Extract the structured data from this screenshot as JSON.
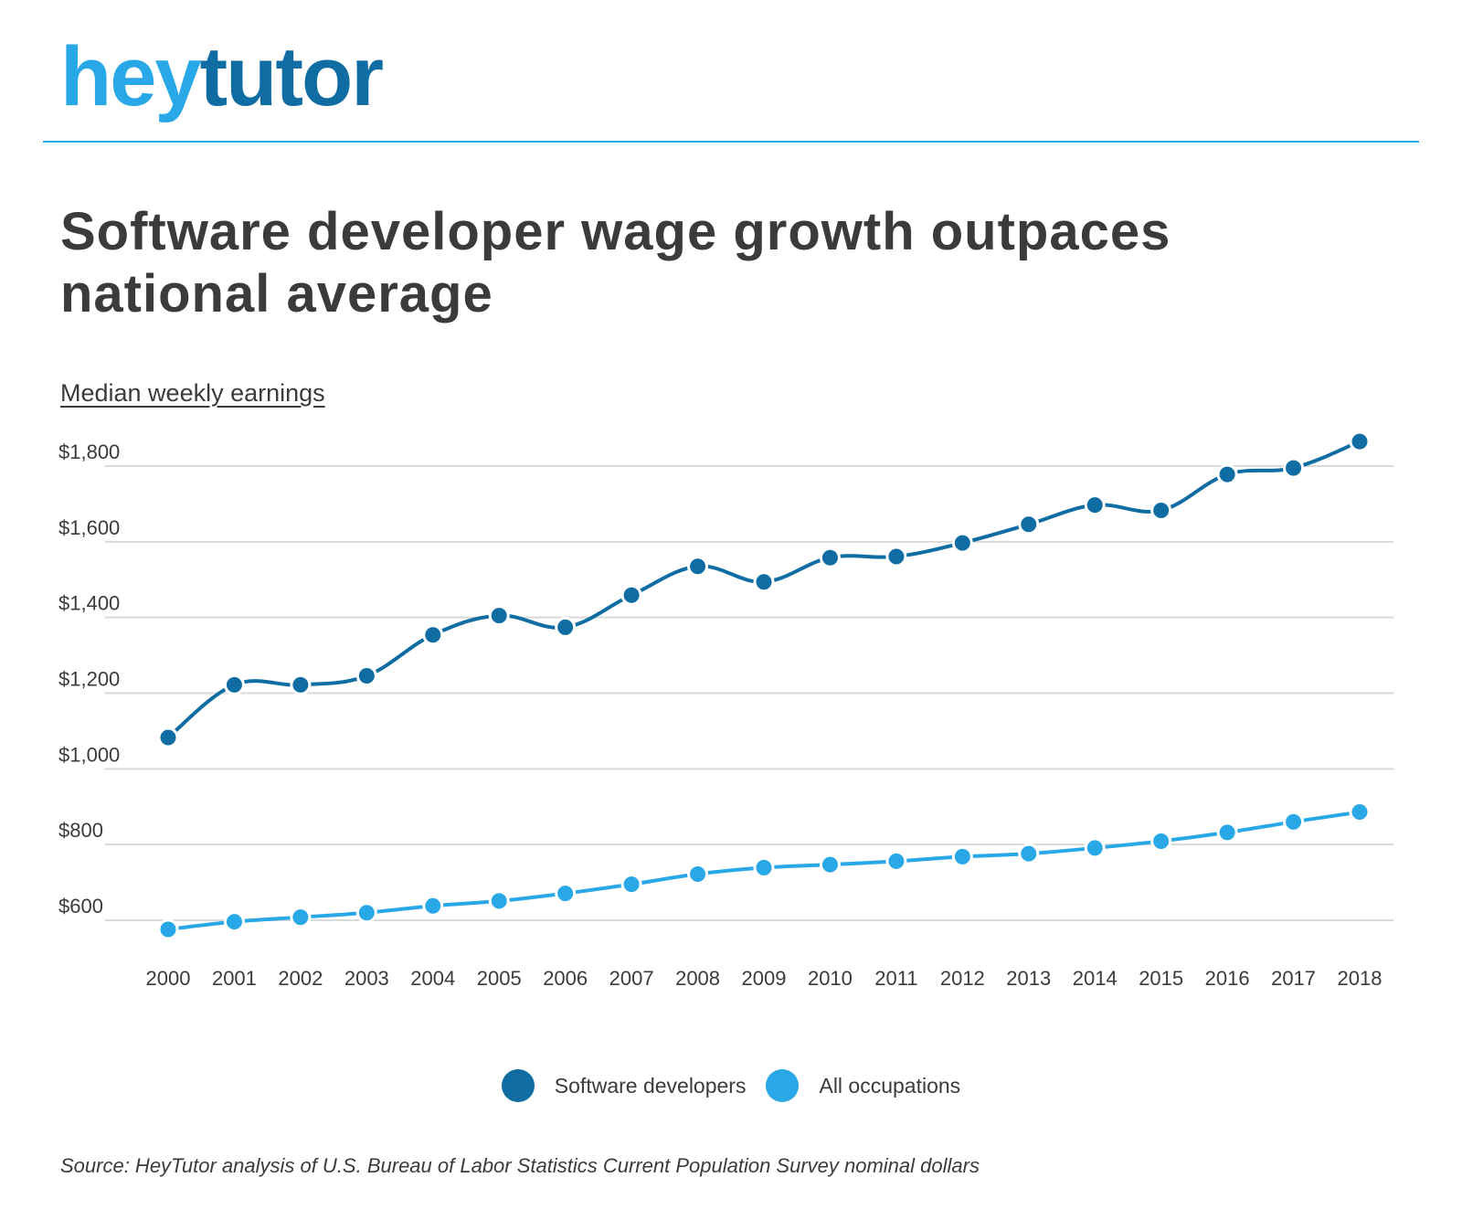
{
  "logo": {
    "part1": "hey",
    "part2": "tutor"
  },
  "title": "Software developer wage growth outpaces national average",
  "subtitle": "Median weekly earnings",
  "source": "Source: HeyTutor analysis of U.S. Bureau of Labor Statistics Current Population Survey nominal dollars",
  "colors": {
    "brand_light": "#29a8e8",
    "brand_dark": "#0f6da3",
    "grid": "#d9d9d9",
    "text": "#3b3b3d"
  },
  "chart_data": {
    "type": "line",
    "x": [
      "2000",
      "2001",
      "2002",
      "2003",
      "2004",
      "2005",
      "2006",
      "2007",
      "2008",
      "2009",
      "2010",
      "2011",
      "2012",
      "2013",
      "2014",
      "2015",
      "2016",
      "2017",
      "2018"
    ],
    "yticks": [
      600,
      800,
      1000,
      1200,
      1400,
      1600,
      1800
    ],
    "ytick_labels": [
      "$600",
      "$800",
      "$1,000",
      "$1,200",
      "$1,400",
      "$1,600",
      "$1,800"
    ],
    "ylim": [
      530,
      1880
    ],
    "grid": true,
    "legend_position": "bottom-center",
    "series": [
      {
        "name": "Software developers",
        "color": "#0f6da3",
        "values": [
          1083,
          1222,
          1222,
          1246,
          1354,
          1405,
          1374,
          1459,
          1535,
          1494,
          1558,
          1561,
          1597,
          1646,
          1697,
          1683,
          1778,
          1795,
          1865
        ]
      },
      {
        "name": "All occupations",
        "color": "#29a8e8",
        "values": [
          576,
          596,
          608,
          620,
          638,
          651,
          671,
          695,
          722,
          739,
          747,
          756,
          768,
          776,
          791,
          809,
          832,
          860,
          886
        ]
      }
    ]
  }
}
